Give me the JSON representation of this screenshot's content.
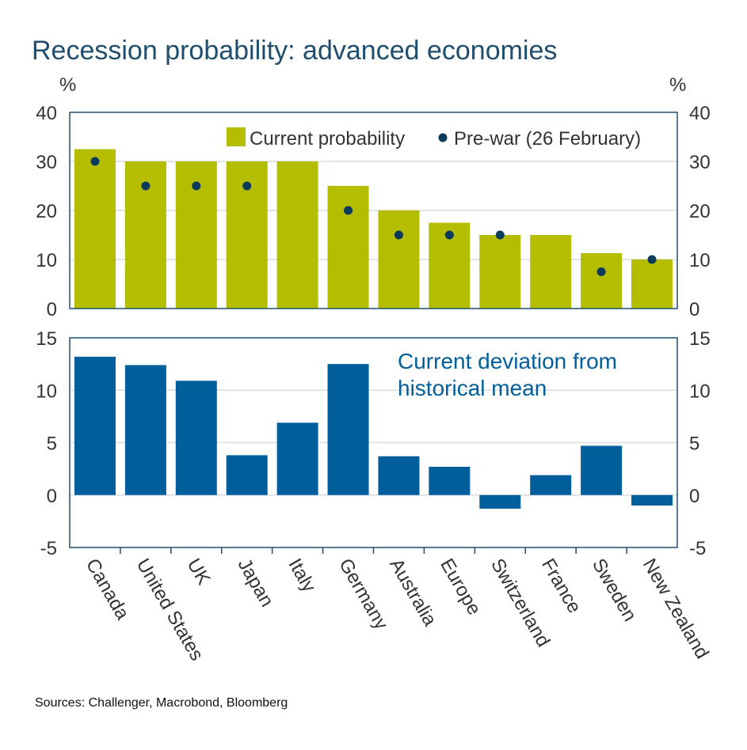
{
  "chart_data": {
    "title": "Recession probability: advanced economies",
    "source": "Sources: Challenger, Macrobond, Bloomberg",
    "categories": [
      "Canada",
      "United States",
      "UK",
      "Japan",
      "Italy",
      "Germany",
      "Australia",
      "Europe",
      "Switzerland",
      "France",
      "Sweden",
      "New Zealand"
    ],
    "panels": [
      {
        "type": "bar",
        "unit_left": "%",
        "unit_right": "%",
        "ylim": [
          0,
          40
        ],
        "yticks": [
          0,
          10,
          20,
          30,
          40
        ],
        "grid": true,
        "legend_placement": "top-right",
        "series": [
          {
            "name": "Current probability",
            "type": "bar",
            "color": "#b5bd00",
            "values": [
              32.5,
              30,
              30,
              30,
              30,
              25,
              20,
              17.5,
              15,
              15,
              11.3,
              10
            ]
          },
          {
            "name": "Pre-war (26 February)",
            "type": "scatter",
            "color": "#0b3a5c",
            "values": [
              30,
              25,
              25,
              25,
              null,
              20,
              15,
              15,
              15,
              null,
              7.5,
              10
            ]
          }
        ]
      },
      {
        "type": "bar",
        "ylim": [
          -5,
          15
        ],
        "yticks": [
          -5,
          0,
          5,
          10,
          15
        ],
        "grid": true,
        "annotation": [
          "Current deviation from",
          "historical mean"
        ],
        "series": [
          {
            "name": "Current deviation from historical mean",
            "type": "bar",
            "color": "#005f9a",
            "values": [
              13.2,
              12.4,
              10.9,
              3.8,
              6.9,
              12.5,
              3.7,
              2.7,
              -1.3,
              1.9,
              4.7,
              -1.0
            ]
          }
        ]
      }
    ]
  }
}
